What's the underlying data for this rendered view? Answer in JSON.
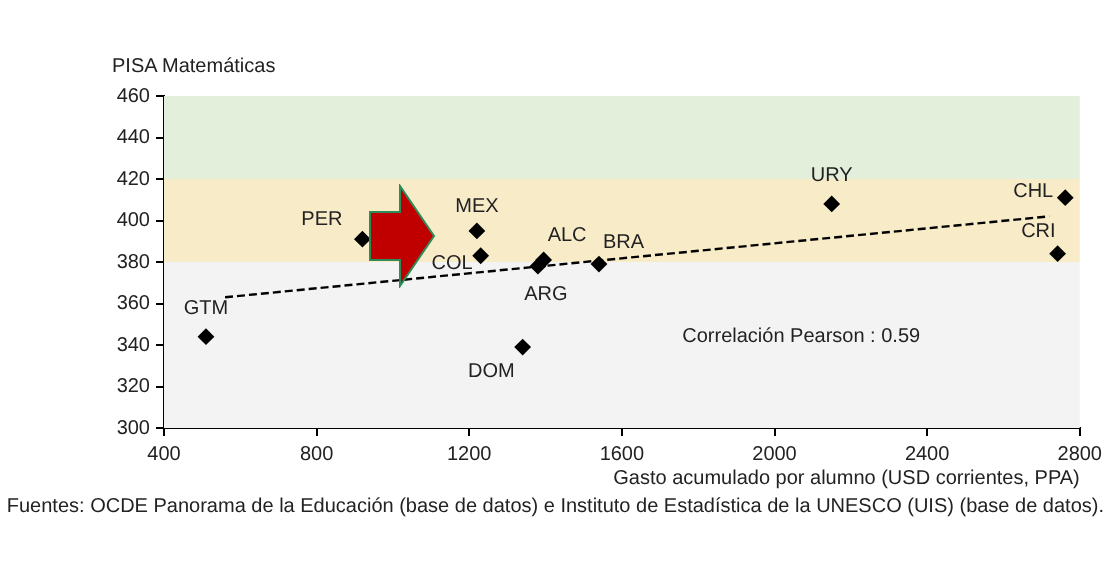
{
  "chart_data": {
    "type": "scatter",
    "xlabel": "Gasto acumulado por alumno (USD corrientes, PPA)",
    "ylabel": "PISA Matemáticas",
    "xlim": [
      400,
      2800
    ],
    "xticks": [
      400,
      800,
      1200,
      1600,
      2000,
      2400,
      2800
    ],
    "ylim": [
      300,
      460
    ],
    "yticks": [
      300,
      320,
      340,
      360,
      380,
      400,
      420,
      440,
      460
    ],
    "grid": false,
    "legend": false,
    "marker": "diamond",
    "bands": [
      {
        "axis": "y",
        "from": 420,
        "to": 460,
        "color": "#e3eedb"
      },
      {
        "axis": "y",
        "from": 380,
        "to": 420,
        "color": "#f8ebc8"
      },
      {
        "axis": "y",
        "from": 300,
        "to": 380,
        "color": "#f3f3f3"
      }
    ],
    "series": [
      {
        "name": "GTM",
        "color": "#000000",
        "x": [
          510
        ],
        "values": [
          344
        ]
      },
      {
        "name": "PER",
        "color": "#000000",
        "x": [
          920
        ],
        "values": [
          391
        ]
      },
      {
        "name": "MEX",
        "color": "#000000",
        "x": [
          1220
        ],
        "values": [
          395
        ]
      },
      {
        "name": "COL",
        "color": "#000000",
        "x": [
          1230
        ],
        "values": [
          383
        ]
      },
      {
        "name": "ARG",
        "color": "#000000",
        "x": [
          1380
        ],
        "values": [
          378
        ]
      },
      {
        "name": "ALC",
        "color": "#000000",
        "x": [
          1395
        ],
        "values": [
          381
        ]
      },
      {
        "name": "DOM",
        "color": "#000000",
        "x": [
          1340
        ],
        "values": [
          339
        ]
      },
      {
        "name": "BRA",
        "color": "#000000",
        "x": [
          1540
        ],
        "values": [
          379
        ]
      },
      {
        "name": "URY",
        "color": "#000000",
        "x": [
          2150
        ],
        "values": [
          408
        ]
      },
      {
        "name": "CHL",
        "color": "#000000",
        "x": [
          2762
        ],
        "values": [
          411
        ]
      },
      {
        "name": "CRI",
        "color": "#000000",
        "x": [
          2742
        ],
        "values": [
          384
        ]
      },
      {
        "type": "line",
        "line_style": "dashed",
        "marker": "none",
        "color": "#000000",
        "x": [
          560,
          2720
        ],
        "values": [
          363,
          402
        ]
      }
    ],
    "annotations": [
      "Correlación Pearson : 0.59",
      "Fuentes: OCDE Panorama de la Educación (base de datos) e Instituto de Estadística de la UNESCO (UIS) (base de datos)."
    ]
  }
}
